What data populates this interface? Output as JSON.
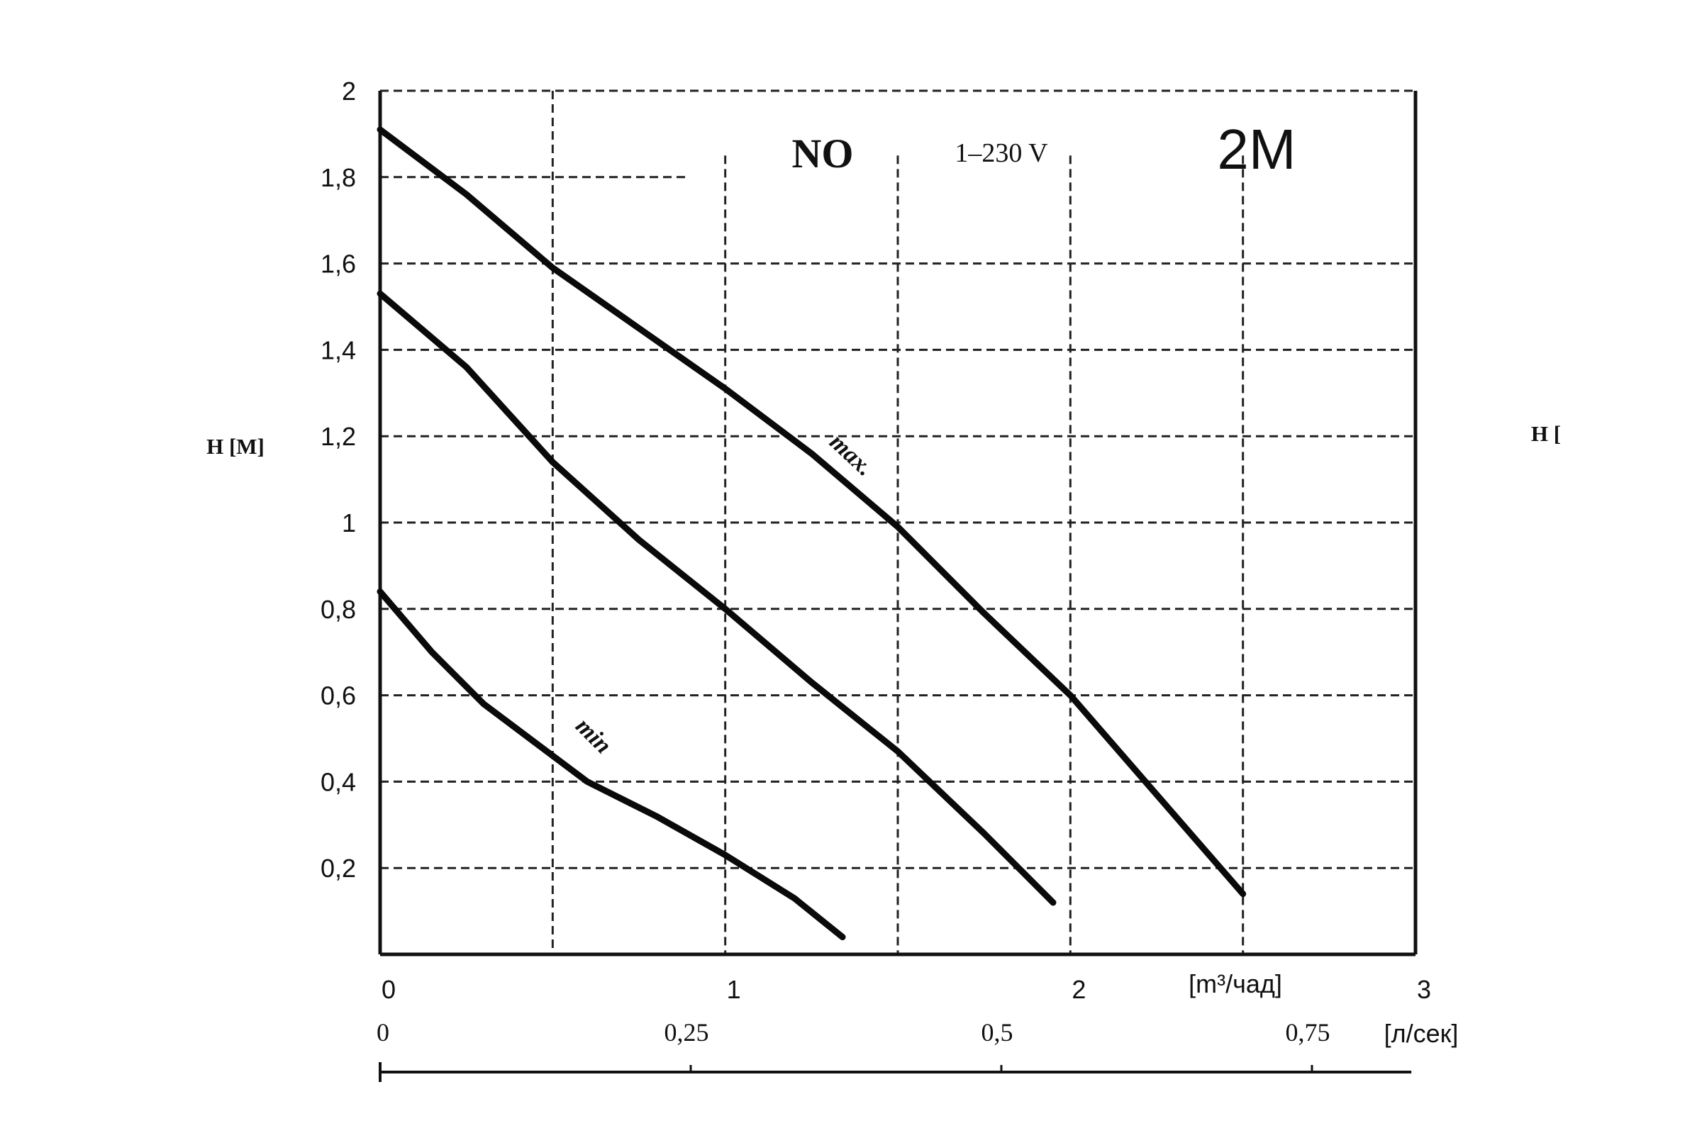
{
  "chart_data": {
    "type": "line",
    "title": "NO",
    "subtitle": "1–230 V",
    "model": "2M",
    "ylabel": "H [M]",
    "ylabel_secondary": "H [",
    "xlabel": "[m³/чад]",
    "xlabel_secondary": "[л/сек]",
    "xlim": [
      0,
      3
    ],
    "ylim": [
      0,
      2
    ],
    "x_ticks": [
      "0",
      "1",
      "2",
      "3"
    ],
    "y_ticks": [
      "2",
      "1,8",
      "1,6",
      "1,4",
      "1,2",
      "1",
      "0,8",
      "0,6",
      "0,4",
      "0,2"
    ],
    "secondary_x_ticks": [
      {
        "label": "0",
        "value": 0
      },
      {
        "label": "0,25",
        "value": 0.25
      },
      {
        "label": "0,5",
        "value": 0.5
      },
      {
        "label": "0,75",
        "value": 0.75
      }
    ],
    "grid": true,
    "series": [
      {
        "name": "max.",
        "x": [
          0,
          0.25,
          0.5,
          0.75,
          1.0,
          1.25,
          1.5,
          1.75,
          2.0,
          2.25,
          2.5
        ],
        "y": [
          1.91,
          1.76,
          1.59,
          1.45,
          1.31,
          1.16,
          0.99,
          0.79,
          0.6,
          0.37,
          0.14
        ]
      },
      {
        "name": "",
        "x": [
          0,
          0.25,
          0.5,
          0.75,
          1.0,
          1.25,
          1.5,
          1.75,
          1.95
        ],
        "y": [
          1.53,
          1.36,
          1.14,
          0.96,
          0.8,
          0.63,
          0.47,
          0.28,
          0.12
        ]
      },
      {
        "name": "min",
        "x": [
          0,
          0.15,
          0.3,
          0.45,
          0.6,
          0.8,
          1.0,
          1.2,
          1.34
        ],
        "y": [
          0.84,
          0.7,
          0.58,
          0.49,
          0.4,
          0.32,
          0.23,
          0.13,
          0.04
        ]
      }
    ],
    "annotations": [
      "max.",
      "min"
    ]
  }
}
